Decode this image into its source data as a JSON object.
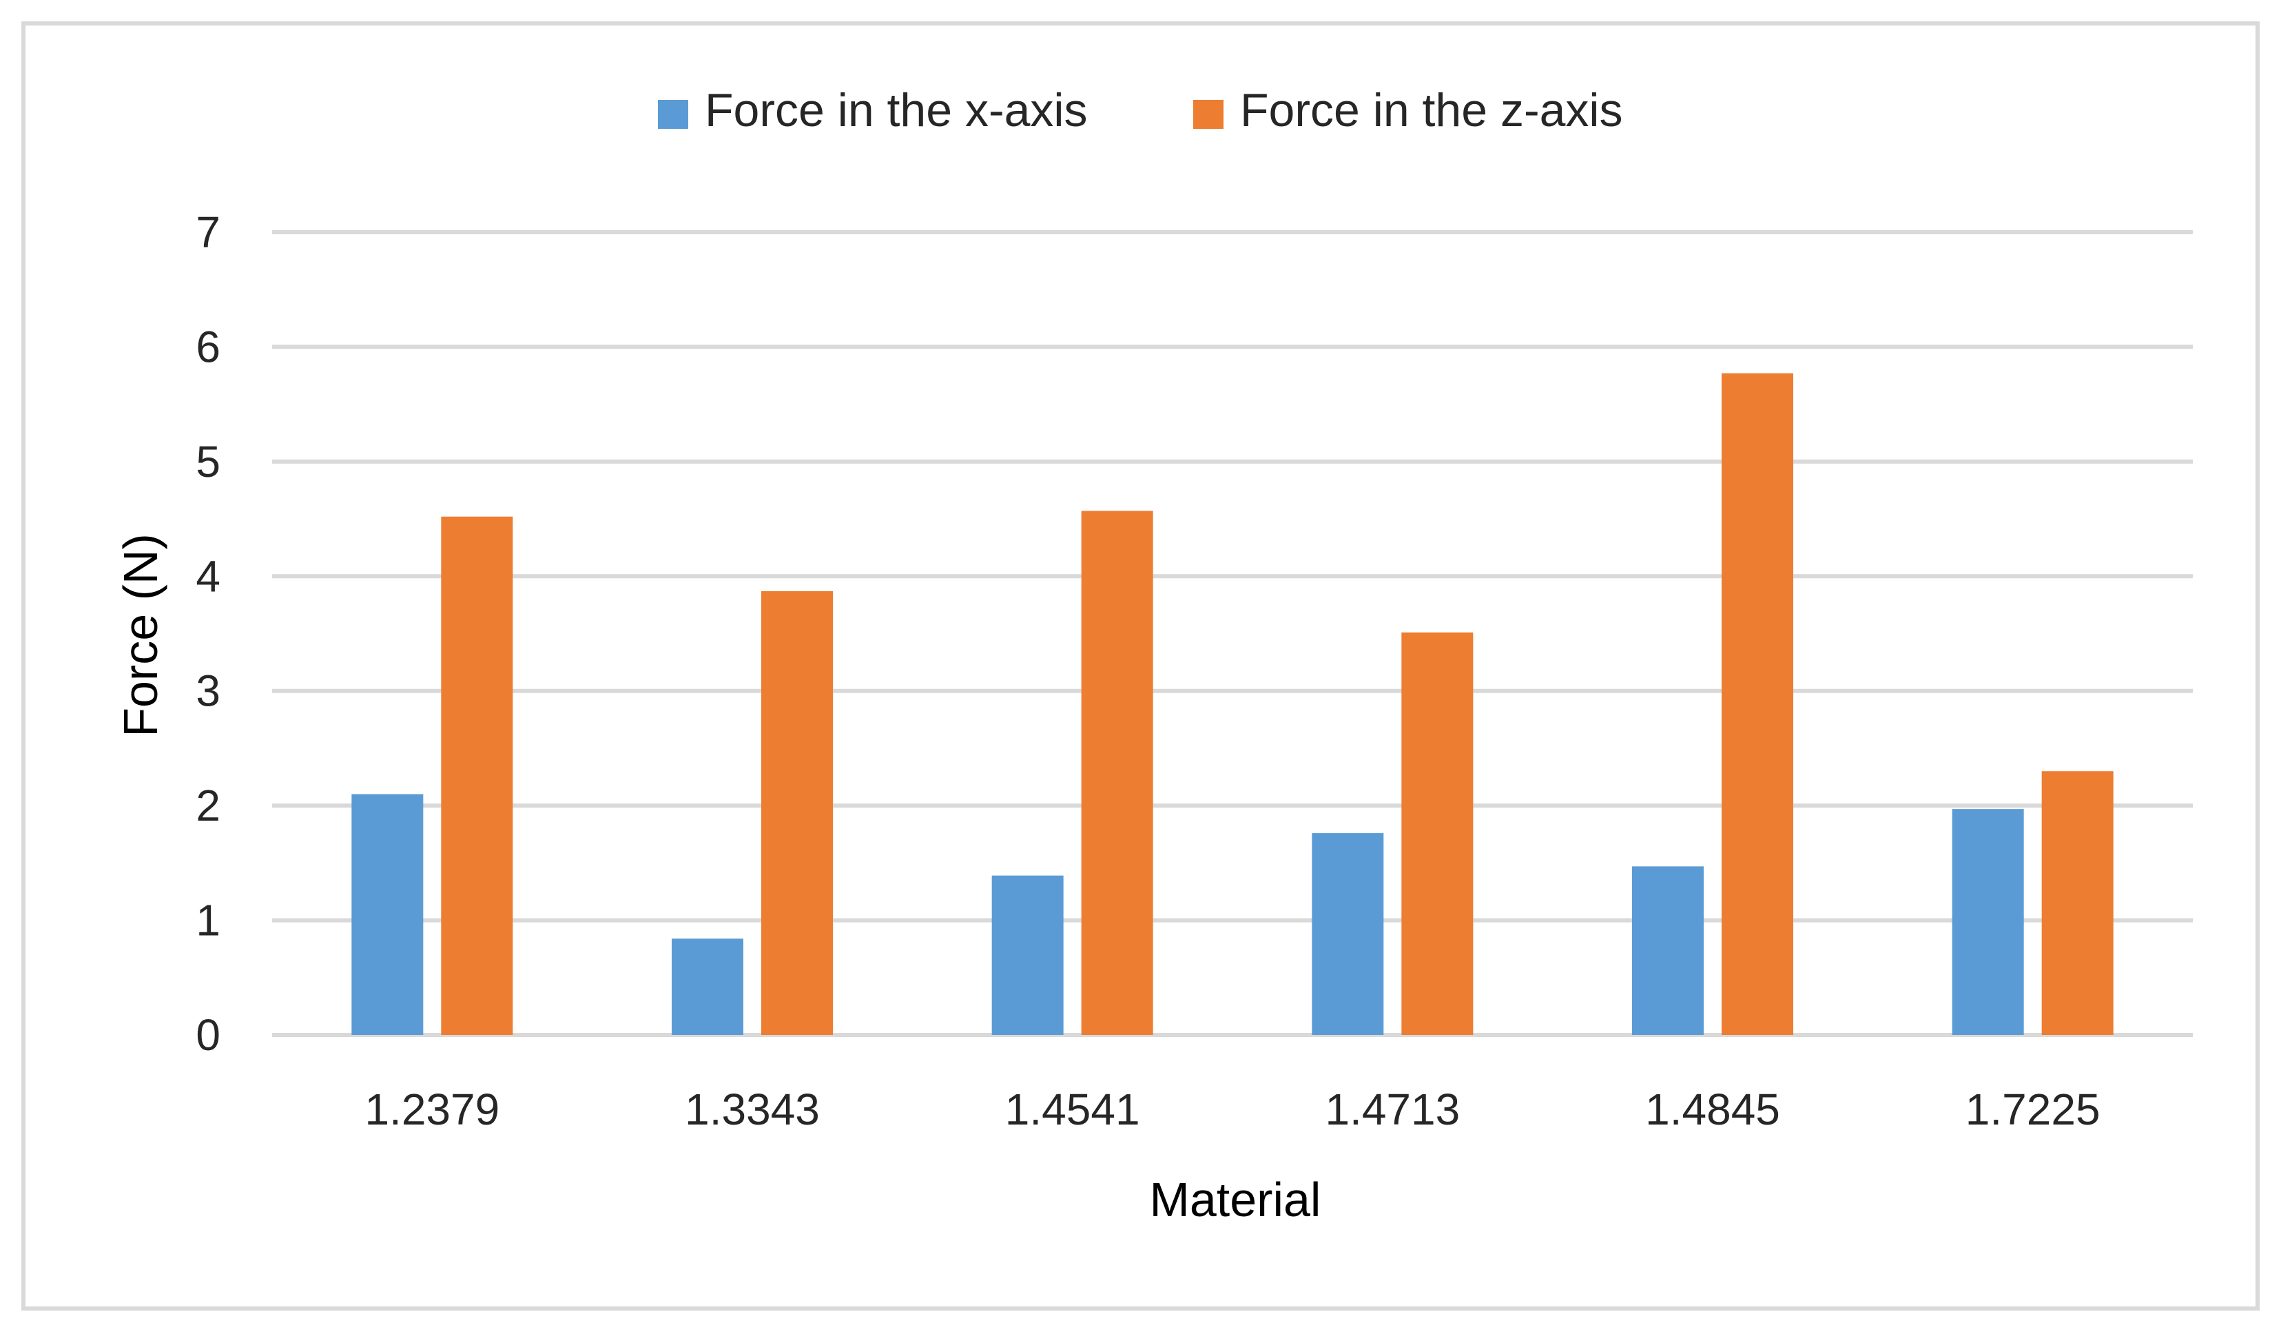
{
  "chart_data": {
    "type": "bar",
    "categories": [
      "1.2379",
      "1.3343",
      "1.4541",
      "1.4713",
      "1.4845",
      "1.7225"
    ],
    "series": [
      {
        "name": "Force in the x-axis",
        "color": "#5B9BD5",
        "values": [
          2.1,
          0.84,
          1.39,
          1.76,
          1.47,
          1.97
        ]
      },
      {
        "name": "Force in the z-axis",
        "color": "#ED7D31",
        "values": [
          4.52,
          3.87,
          4.57,
          3.51,
          5.77,
          2.3
        ]
      }
    ],
    "title": "",
    "xlabel": "Material",
    "ylabel": "Force (N)",
    "ylim": [
      0,
      7
    ],
    "yticks": [
      "0",
      "1",
      "2",
      "3",
      "4",
      "5",
      "6",
      "7"
    ],
    "grid": true,
    "legend_position": "top"
  }
}
